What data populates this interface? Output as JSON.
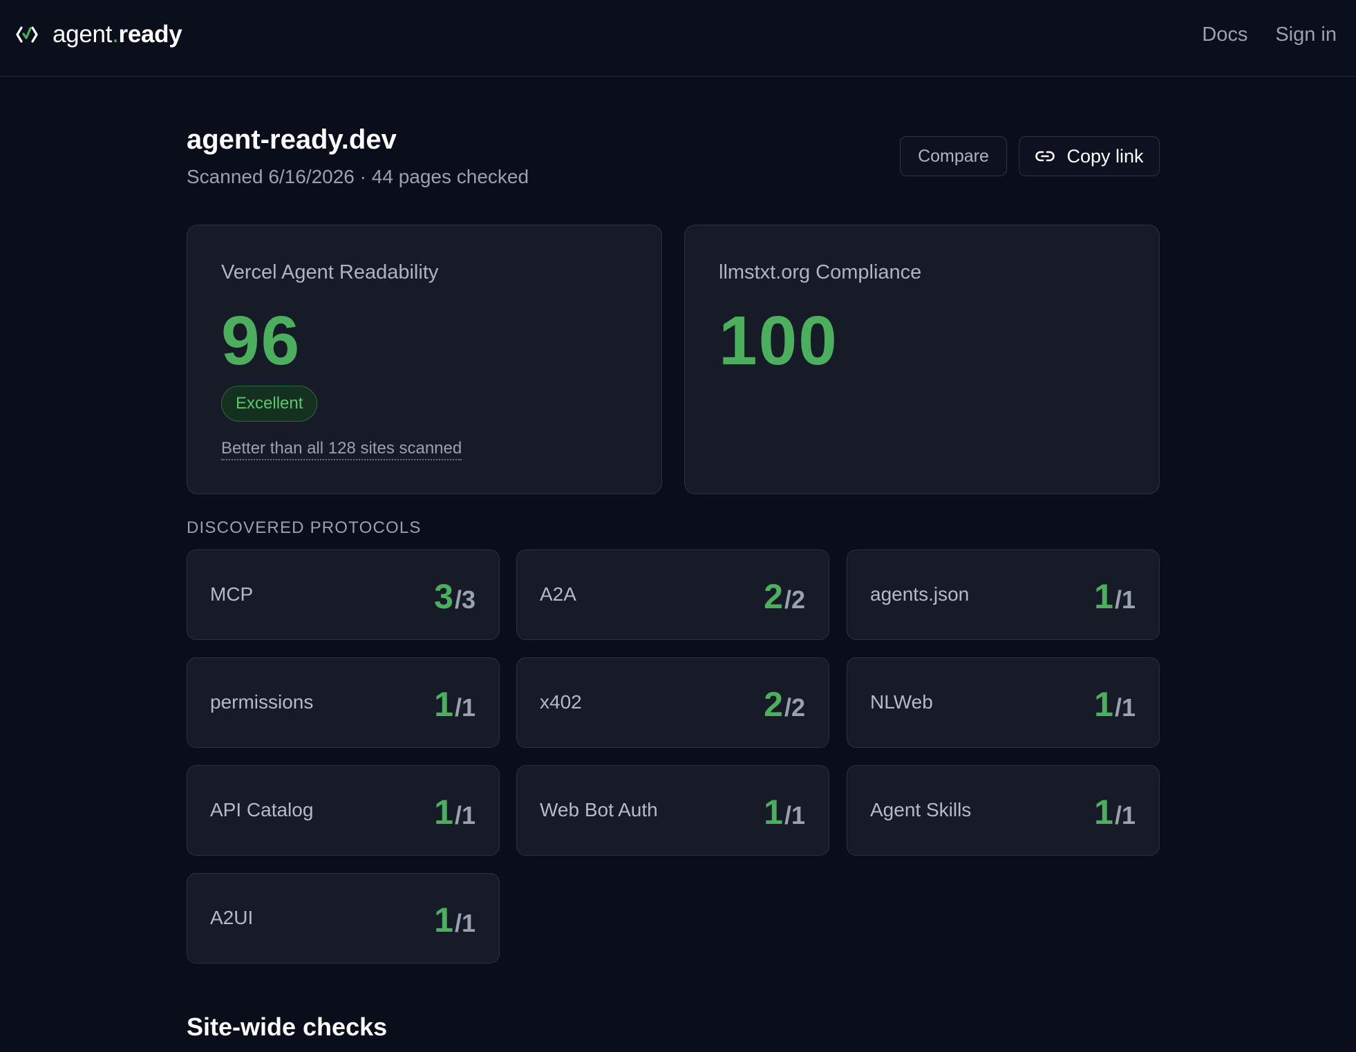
{
  "brand": {
    "prefix": "agent",
    "dot": ".",
    "suffix": "ready"
  },
  "nav": {
    "docs": "Docs",
    "sign_in": "Sign in"
  },
  "site": {
    "title": "agent-ready.dev",
    "meta": "Scanned 6/16/2026 · 44 pages checked"
  },
  "actions": {
    "compare": "Compare",
    "copy_link": "Copy link"
  },
  "scores": [
    {
      "label": "Vercel Agent Readability",
      "value": "96",
      "badge": "Excellent",
      "rank": "Better than all 128 sites scanned"
    },
    {
      "label": "llmstxt.org Compliance",
      "value": "100"
    }
  ],
  "protocols": {
    "heading": "DISCOVERED PROTOCOLS",
    "items": [
      {
        "name": "MCP",
        "found": "3",
        "total": "/3"
      },
      {
        "name": "A2A",
        "found": "2",
        "total": "/2"
      },
      {
        "name": "agents.json",
        "found": "1",
        "total": "/1"
      },
      {
        "name": "permissions",
        "found": "1",
        "total": "/1"
      },
      {
        "name": "x402",
        "found": "2",
        "total": "/2"
      },
      {
        "name": "NLWeb",
        "found": "1",
        "total": "/1"
      },
      {
        "name": "API Catalog",
        "found": "1",
        "total": "/1"
      },
      {
        "name": "Web Bot Auth",
        "found": "1",
        "total": "/1"
      },
      {
        "name": "Agent Skills",
        "found": "1",
        "total": "/1"
      },
      {
        "name": "A2UI",
        "found": "1",
        "total": "/1"
      }
    ]
  },
  "sitewide": {
    "title": "Site-wide checks"
  },
  "colors": {
    "accent": "#4caf5e",
    "background": "#0a0e1a",
    "card": "#171b27"
  }
}
